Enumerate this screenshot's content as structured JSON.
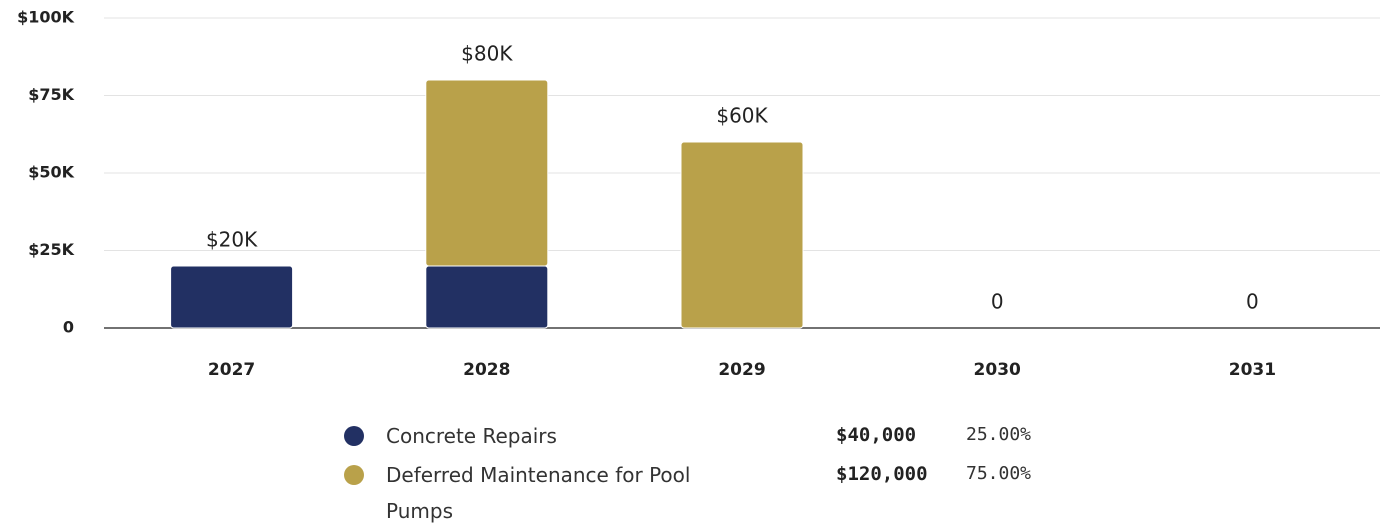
{
  "chart_data": {
    "type": "stacked_bar",
    "categories": [
      "2027",
      "2028",
      "2029",
      "2030",
      "2031"
    ],
    "series": [
      {
        "name": "Concrete Repairs",
        "color": "#223063",
        "values": [
          20000,
          20000,
          0,
          0,
          0
        ],
        "total_label": "$40,000",
        "share_label": "25.00%"
      },
      {
        "name": "Deferred Maintenance for Pool Pumps",
        "color": "#b9a14a",
        "values": [
          0,
          60000,
          60000,
          0,
          0
        ],
        "total_label": "$120,000",
        "share_label": "75.00%"
      }
    ],
    "total_labels": [
      "$20K",
      "$80K",
      "$60K",
      "0",
      "0"
    ],
    "ylim": [
      0,
      100000
    ],
    "yticks": [
      0,
      {
        "value": 25000,
        "label": "$25K"
      },
      {
        "value": 50000,
        "label": "$50K"
      },
      {
        "value": 75000,
        "label": "$75K"
      },
      {
        "value": 100000,
        "label": "$100K"
      }
    ],
    "grid": true
  }
}
